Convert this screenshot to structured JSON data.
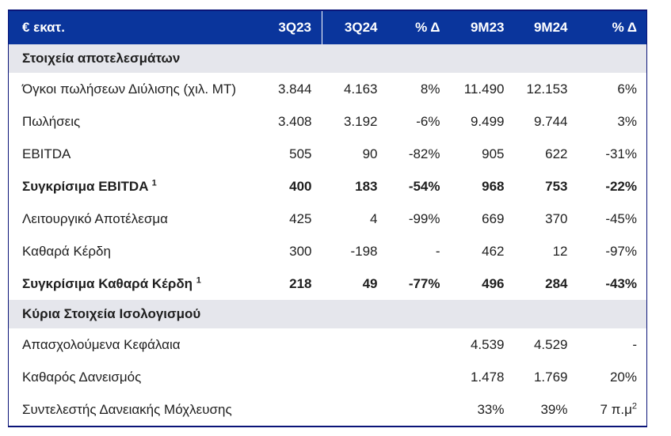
{
  "table": {
    "unit_label": "€ εκατ.",
    "columns": [
      "3Q23",
      "3Q24",
      "% Δ",
      "9M23",
      "9M24",
      "% Δ"
    ],
    "colors": {
      "header_bg": "#0A359C",
      "border": "#0A1478",
      "section_bg": "#E5E6EC",
      "text": "#1E1E1E"
    },
    "sections": [
      {
        "title": "Στοιχεία αποτελεσμάτων",
        "rows": [
          {
            "label": "Όγκοι πωλήσεων Διύλισης (χιλ. MT)",
            "bold": false,
            "values": [
              "3.844",
              "4.163",
              "8%",
              "11.490",
              "12.153",
              "6%"
            ]
          },
          {
            "label": "Πωλήσεις",
            "bold": false,
            "values": [
              "3.408",
              "3.192",
              "-6%",
              "9.499",
              "9.744",
              "3%"
            ]
          },
          {
            "label": "EBITDA",
            "bold": false,
            "values": [
              "505",
              "90",
              "-82%",
              "905",
              "622",
              "-31%"
            ]
          },
          {
            "label": "Συγκρίσιμα EBITDA",
            "sup": "1",
            "bold": true,
            "values": [
              "400",
              "183",
              "-54%",
              "968",
              "753",
              "-22%"
            ]
          },
          {
            "label": "Λειτουργικό Αποτέλεσμα",
            "bold": false,
            "values": [
              "425",
              "4",
              "-99%",
              "669",
              "370",
              "-45%"
            ]
          },
          {
            "label": "Καθαρά Κέρδη",
            "bold": false,
            "values": [
              "300",
              "-198",
              "-",
              "462",
              "12",
              "-97%"
            ]
          },
          {
            "label": "Συγκρίσιμα Καθαρά Κέρδη",
            "sup": "1",
            "bold": true,
            "values": [
              "218",
              "49",
              "-77%",
              "496",
              "284",
              "-43%"
            ]
          }
        ]
      },
      {
        "title": "Κύρια Στοιχεία Ισολογισμού",
        "rows": [
          {
            "label": "Απασχολούμενα Κεφάλαια",
            "bold": false,
            "values": [
              "",
              "",
              "",
              "4.539",
              "4.529",
              "-"
            ]
          },
          {
            "label": "Καθαρός Δανεισμός",
            "bold": false,
            "values": [
              "",
              "",
              "",
              "1.478",
              "1.769",
              "20%"
            ]
          },
          {
            "label": "Συντελεστής Δανειακής Μόχλευσης",
            "bold": false,
            "values": [
              "",
              "",
              "",
              "33%",
              "39%",
              {
                "t": "7 π.μ",
                "sup": "2"
              }
            ]
          }
        ]
      }
    ]
  }
}
